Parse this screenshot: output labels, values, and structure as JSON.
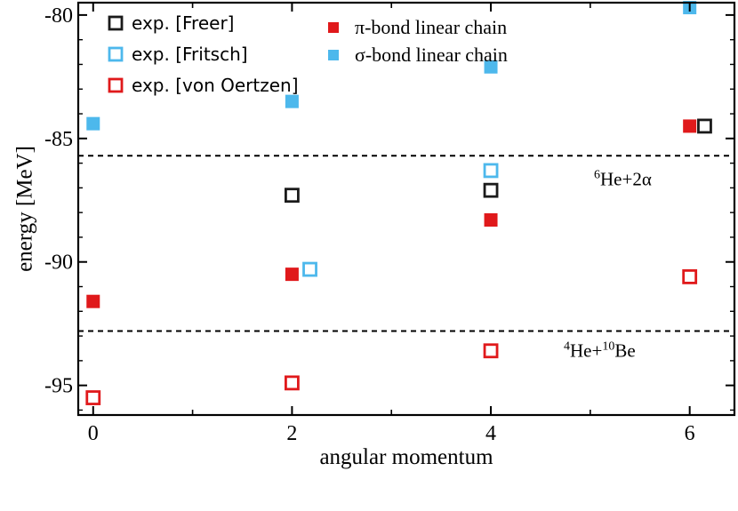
{
  "chart_data": {
    "type": "scatter",
    "xlabel": "angular momentum",
    "ylabel": "energy [MeV]",
    "xlim": [
      -0.15,
      6.45
    ],
    "ylim": [
      -96.2,
      -79.5
    ],
    "x_ticks": [
      0,
      2,
      4,
      6
    ],
    "y_ticks": [
      -80,
      -85,
      -90,
      -95
    ],
    "x_tick_labels": [
      "0",
      "2",
      "4",
      "6"
    ],
    "y_tick_labels": [
      "-80",
      "-85",
      "-90",
      "-95"
    ],
    "grid": false,
    "legend_placement": "top-left, two columns",
    "series": [
      {
        "name": "exp. [Freer]",
        "marker": "open-square",
        "color": "#1a1a1a",
        "points": [
          {
            "x": 2,
            "y": -87.3
          },
          {
            "x": 4,
            "y": -87.1
          },
          {
            "x": 6.15,
            "y": -84.5
          }
        ]
      },
      {
        "name": "exp. [Fritsch]",
        "marker": "open-square",
        "color": "#4db8ec",
        "points": [
          {
            "x": 2.18,
            "y": -90.3
          },
          {
            "x": 4,
            "y": -86.3
          }
        ]
      },
      {
        "name": "exp. [von Oertzen]",
        "marker": "open-square",
        "color": "#e0191b",
        "points": [
          {
            "x": 0,
            "y": -95.5
          },
          {
            "x": 2,
            "y": -94.9
          },
          {
            "x": 4,
            "y": -93.6
          },
          {
            "x": 6,
            "y": -90.6
          }
        ]
      },
      {
        "name_prefix": "π",
        "name_suffix": "-bond linear chain",
        "marker": "filled-square",
        "color": "#e0191b",
        "points": [
          {
            "x": 0,
            "y": -91.6
          },
          {
            "x": 2,
            "y": -90.5
          },
          {
            "x": 4,
            "y": -88.3
          },
          {
            "x": 6,
            "y": -84.5
          }
        ]
      },
      {
        "name_prefix": "σ",
        "name_suffix": "-bond linear chain",
        "marker": "filled-square",
        "color": "#4db8ec",
        "points": [
          {
            "x": 0,
            "y": -84.4
          },
          {
            "x": 2,
            "y": -83.5
          },
          {
            "x": 4,
            "y": -82.1
          },
          {
            "x": 6,
            "y": -79.7
          }
        ]
      }
    ],
    "thresholds": [
      {
        "y": -85.7,
        "label_sup": "6",
        "label_main": "He+2α",
        "label_sup2": "",
        "label_tail": ""
      },
      {
        "y": -92.8,
        "label_sup": "4",
        "label_main": "He+",
        "label_sup2": "10",
        "label_tail": "Be"
      }
    ]
  }
}
